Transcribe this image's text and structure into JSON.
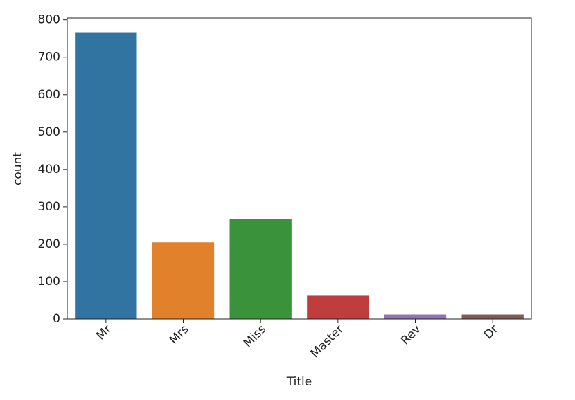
{
  "chart_data": {
    "type": "bar",
    "xlabel": "Title",
    "ylabel": "count",
    "categories": [
      "Mr",
      "Mrs",
      "Miss",
      "Master",
      "Rev",
      "Dr"
    ],
    "values": [
      767,
      205,
      268,
      64,
      12,
      12
    ],
    "colors": [
      "#3274a1",
      "#e1812c",
      "#3a923a",
      "#c03d3e",
      "#9372b2",
      "#845b53"
    ],
    "ylim": [
      0,
      805
    ],
    "yticks": [
      0,
      100,
      200,
      300,
      400,
      500,
      600,
      700,
      800
    ]
  }
}
